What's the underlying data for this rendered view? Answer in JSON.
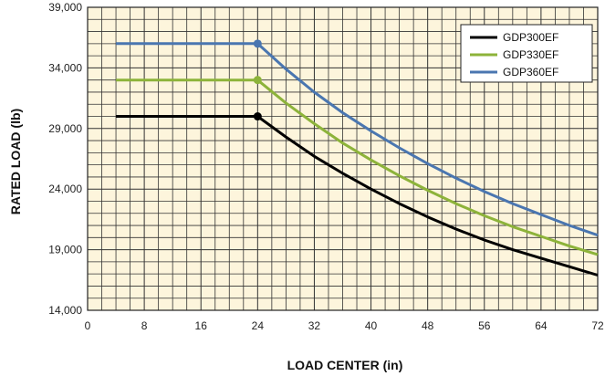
{
  "chart_data": {
    "type": "line",
    "title": "",
    "xlabel": "LOAD CENTER (in)",
    "ylabel": "RATED LOAD (lb)",
    "xlim": [
      0,
      72
    ],
    "ylim": [
      14000,
      39000
    ],
    "x_ticks": [
      0,
      8,
      16,
      24,
      32,
      40,
      48,
      56,
      64,
      72
    ],
    "y_ticks": [
      14000,
      19000,
      24000,
      29000,
      34000,
      39000
    ],
    "x_tick_labels": [
      "0",
      "8",
      "16",
      "24",
      "32",
      "40",
      "48",
      "56",
      "64",
      "72"
    ],
    "y_tick_labels": [
      "14,000",
      "19,000",
      "24,000",
      "29,000",
      "34,000",
      "39,000"
    ],
    "grid": true,
    "legend_position": "top-right",
    "background_color": "#fdf5dc",
    "grid_color": "#333333",
    "series": [
      {
        "name": "GDP300EF",
        "color": "#000000",
        "x": [
          4,
          24,
          28,
          32,
          36,
          40,
          44,
          48,
          52,
          56,
          60,
          64,
          68,
          72
        ],
        "y": [
          30000,
          30000,
          28300,
          26700,
          25300,
          24000,
          22800,
          21700,
          20700,
          19800,
          19000,
          18300,
          17600,
          16900
        ]
      },
      {
        "name": "GDP330EF",
        "color": "#8db33a",
        "x": [
          4,
          24,
          28,
          32,
          36,
          40,
          44,
          48,
          52,
          56,
          60,
          64,
          68,
          72
        ],
        "y": [
          33000,
          33000,
          31100,
          29400,
          27800,
          26400,
          25100,
          23900,
          22800,
          21800,
          20900,
          20100,
          19300,
          18600
        ]
      },
      {
        "name": "GDP360EF",
        "color": "#4a76b0",
        "x": [
          4,
          24,
          28,
          32,
          36,
          40,
          44,
          48,
          52,
          56,
          60,
          64,
          68,
          72
        ],
        "y": [
          36000,
          36000,
          33900,
          32000,
          30300,
          28800,
          27400,
          26100,
          24900,
          23800,
          22800,
          21900,
          21000,
          20200
        ]
      }
    ]
  }
}
